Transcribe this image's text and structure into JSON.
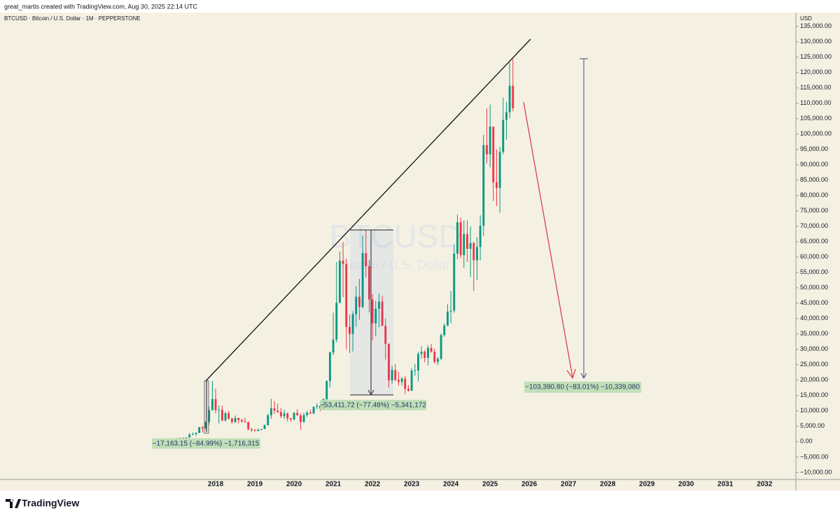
{
  "header": "great_martis created with TradingView.com, Aug 30, 2025 22:14 UTC",
  "footer": "TradingView",
  "chart_data": {
    "type": "candlestick",
    "title": "BTCUSD · Bitcoin / U.S. Dollar · 1M · PEPPERSTONE",
    "watermark": "BTCUSD",
    "watermark_subtitle": "Bitcoin / U.S. Dollar",
    "y_axis_label": "USD",
    "up_color": "#089981",
    "down_color": "#f23645",
    "grid": false,
    "x": [
      2017,
      2017.083,
      2017.167,
      2017.25,
      2017.333,
      2017.417,
      2017.5,
      2017.583,
      2017.667,
      2017.75,
      2017.833,
      2017.917,
      2018,
      2018.083,
      2018.167,
      2018.25,
      2018.333,
      2018.417,
      2018.5,
      2018.583,
      2018.667,
      2018.75,
      2018.833,
      2018.917,
      2019,
      2019.083,
      2019.167,
      2019.25,
      2019.333,
      2019.417,
      2019.5,
      2019.583,
      2019.667,
      2019.75,
      2019.833,
      2019.917,
      2020,
      2020.083,
      2020.167,
      2020.25,
      2020.333,
      2020.417,
      2020.5,
      2020.583,
      2020.667,
      2020.75,
      2020.833,
      2020.917,
      2021,
      2021.083,
      2021.167,
      2021.25,
      2021.333,
      2021.417,
      2021.5,
      2021.583,
      2021.667,
      2021.75,
      2021.833,
      2021.917,
      2022,
      2022.083,
      2022.167,
      2022.25,
      2022.333,
      2022.417,
      2022.5,
      2022.583,
      2022.667,
      2022.75,
      2022.833,
      2022.917,
      2023,
      2023.083,
      2023.167,
      2023.25,
      2023.333,
      2023.417,
      2023.5,
      2023.583,
      2023.667,
      2023.75,
      2023.833,
      2023.917,
      2024,
      2024.083,
      2024.167,
      2024.25,
      2024.333,
      2024.417,
      2024.5,
      2024.583,
      2024.667,
      2024.75,
      2024.833,
      2024.917,
      2025,
      2025.083,
      2025.167,
      2025.25,
      2025.333,
      2025.417,
      2025.5,
      2025.583
    ],
    "open": [
      963,
      970,
      1190,
      1080,
      1350,
      2300,
      2480,
      2875,
      4700,
      4340,
      6470,
      10200,
      13860,
      10220,
      10330,
      6920,
      9240,
      7490,
      6390,
      7730,
      7030,
      6625,
      6340,
      4040,
      3740,
      3460,
      3850,
      4100,
      5320,
      8570,
      10820,
      10080,
      9600,
      8300,
      9150,
      7570,
      7190,
      9350,
      8540,
      6410,
      8630,
      9450,
      9140,
      11340,
      11650,
      10780,
      13800,
      19700,
      28990,
      33140,
      45140,
      58800,
      57750,
      37300,
      35040,
      41460,
      47100,
      43800,
      61300,
      57000,
      46200,
      38470,
      43190,
      45520,
      37640,
      31800,
      19940,
      23300,
      20050,
      19420,
      20500,
      17170,
      16540,
      23130,
      23150,
      28480,
      29250,
      27220,
      30480,
      29230,
      25940,
      26970,
      34650,
      37720,
      42280,
      42580,
      61130,
      71330,
      60640,
      67500,
      62700,
      64600,
      58970,
      63300,
      70200,
      96400,
      93400,
      102400,
      84300,
      82500,
      94200,
      104600,
      107100,
      115700
    ],
    "high": [
      1190,
      1200,
      1350,
      1350,
      2760,
      2980,
      2990,
      4750,
      4980,
      6470,
      11400,
      19700,
      17200,
      11800,
      11700,
      9750,
      9990,
      7770,
      8500,
      7750,
      7400,
      7680,
      6580,
      4410,
      4100,
      4200,
      4140,
      5600,
      9100,
      13880,
      13200,
      12330,
      10900,
      10400,
      9520,
      7750,
      9580,
      10500,
      9190,
      9460,
      10070,
      10380,
      11440,
      12470,
      12050,
      14100,
      19900,
      29300,
      41950,
      58350,
      61800,
      64900,
      59500,
      41330,
      42400,
      50500,
      52900,
      67000,
      69000,
      59100,
      47990,
      45800,
      48200,
      47440,
      40000,
      31950,
      24650,
      25200,
      22700,
      21000,
      21450,
      18400,
      23950,
      25250,
      29200,
      31000,
      29830,
      31400,
      31800,
      30200,
      27500,
      35200,
      38400,
      44700,
      48970,
      64000,
      73800,
      72800,
      71950,
      71950,
      70000,
      65000,
      66500,
      73600,
      99800,
      108300,
      109600,
      102500,
      95000,
      95800,
      111900,
      110500,
      123200,
      124400
    ],
    "low": [
      750,
      920,
      890,
      1060,
      1350,
      2080,
      1830,
      2700,
      2970,
      4110,
      5520,
      10700,
      9200,
      5900,
      6600,
      6430,
      7060,
      5780,
      6070,
      5880,
      6100,
      6180,
      3650,
      3130,
      3350,
      3400,
      3690,
      4080,
      5320,
      7450,
      9060,
      9350,
      7700,
      7300,
      6520,
      6430,
      6870,
      8460,
      3850,
      6150,
      8100,
      8920,
      8990,
      10540,
      9850,
      10400,
      13200,
      17600,
      28130,
      32300,
      45000,
      47000,
      30000,
      28800,
      29300,
      37330,
      39600,
      43300,
      53300,
      42000,
      32900,
      34300,
      37200,
      37700,
      26700,
      17600,
      18800,
      19600,
      18200,
      18200,
      15500,
      16300,
      16500,
      21400,
      19600,
      26950,
      25800,
      24800,
      28900,
      25300,
      24900,
      26550,
      34100,
      37600,
      38500,
      41900,
      59300,
      59600,
      56500,
      58400,
      53500,
      49000,
      52500,
      58900,
      66800,
      90500,
      89200,
      78200,
      76600,
      74400,
      93400,
      98200,
      105100,
      107400
    ],
    "close": [
      970,
      1190,
      1080,
      1350,
      2300,
      2480,
      2875,
      4700,
      4340,
      6470,
      10200,
      13860,
      10220,
      10330,
      6920,
      9240,
      7490,
      6390,
      7730,
      7030,
      6625,
      6340,
      4040,
      3740,
      3460,
      3850,
      4100,
      5320,
      8570,
      10820,
      10080,
      9600,
      8300,
      9150,
      7570,
      7190,
      9350,
      8540,
      6410,
      8630,
      9450,
      9140,
      11340,
      11650,
      10780,
      13800,
      19700,
      28990,
      33140,
      45140,
      58800,
      57750,
      37300,
      35040,
      41460,
      47100,
      43800,
      61300,
      57000,
      46200,
      38470,
      43190,
      45520,
      37640,
      31800,
      19940,
      23300,
      20050,
      19420,
      20500,
      17170,
      16540,
      23130,
      23150,
      28480,
      29250,
      27220,
      30480,
      29230,
      25940,
      26970,
      34650,
      37720,
      42280,
      42580,
      61130,
      71330,
      60640,
      67500,
      62700,
      64600,
      58970,
      63300,
      70200,
      96400,
      93400,
      102400,
      84300,
      82500,
      94200,
      104600,
      107100,
      115700,
      108400
    ],
    "xlim": [
      2012.5,
      2032.8
    ],
    "xticks": [
      2018,
      2019,
      2020,
      2021,
      2022,
      2023,
      2024,
      2025,
      2026,
      2027,
      2028,
      2029,
      2030,
      2031,
      2032
    ],
    "ylim": [
      -12300,
      139500
    ],
    "yticks": [
      {
        "value": 135000,
        "label": "135,000.00"
      },
      {
        "value": 130000,
        "label": "130,000.00"
      },
      {
        "value": 125000,
        "label": "125,000.00"
      },
      {
        "value": 120000,
        "label": "120,000.00"
      },
      {
        "value": 115000,
        "label": "115,000.00"
      },
      {
        "value": 110000,
        "label": "110,000.00"
      },
      {
        "value": 105000,
        "label": "105,000.00"
      },
      {
        "value": 100000,
        "label": "100,000.00"
      },
      {
        "value": 95000,
        "label": "95,000.00"
      },
      {
        "value": 90000,
        "label": "90,000.00"
      },
      {
        "value": 85000,
        "label": "85,000.00"
      },
      {
        "value": 80000,
        "label": "80,000.00"
      },
      {
        "value": 75000,
        "label": "75,000.00"
      },
      {
        "value": 70000,
        "label": "70,000.00"
      },
      {
        "value": 65000,
        "label": "65,000.00"
      },
      {
        "value": 60000,
        "label": "60,000.00"
      },
      {
        "value": 55000,
        "label": "55,000.00"
      },
      {
        "value": 50000,
        "label": "50,000.00"
      },
      {
        "value": 45000,
        "label": "45,000.00"
      },
      {
        "value": 40000,
        "label": "40,000.00"
      },
      {
        "value": 35000,
        "label": "35,000.00"
      },
      {
        "value": 30000,
        "label": "30,000.00"
      },
      {
        "value": 25000,
        "label": "25,000.00"
      },
      {
        "value": 20000,
        "label": "20,000.00"
      },
      {
        "value": 15000,
        "label": "15,000.00"
      },
      {
        "value": 10000,
        "label": "10,000.00"
      },
      {
        "value": 5000,
        "label": "5,000.00"
      },
      {
        "value": 0,
        "label": "0.00"
      },
      {
        "value": -5000,
        "label": "−5,000.00"
      },
      {
        "value": -10000,
        "label": "−10,000.00"
      }
    ],
    "annotations": [
      "−17,163.15 (−84.99%) −1,716,315",
      "−53,411.72 (−77.48%) −5,341,172",
      "−103,390.80 (−83.01%) −10,339,080"
    ]
  }
}
